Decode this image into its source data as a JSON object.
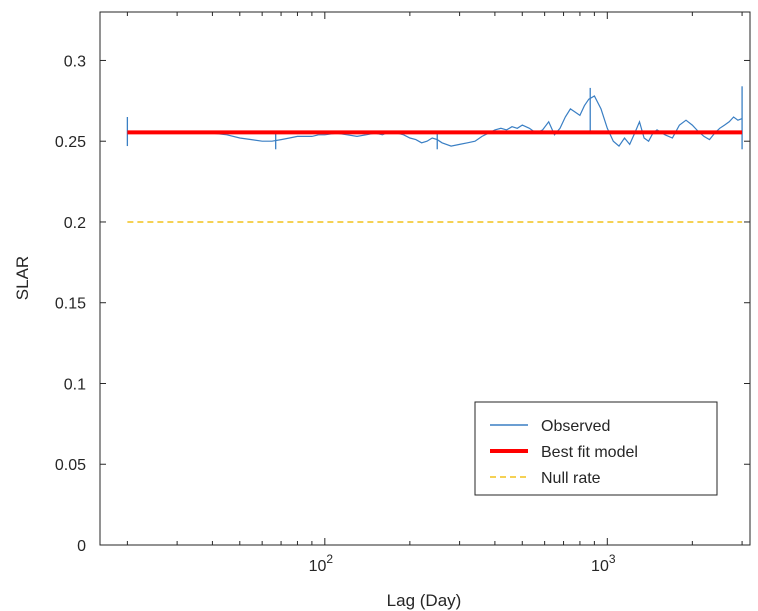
{
  "chart_data": {
    "type": "line",
    "xlabel": "Lag (Day)",
    "ylabel": "SLAR",
    "xscale": "log",
    "xlim": [
      16,
      3200
    ],
    "ylim": [
      0,
      0.33
    ],
    "yticks": [
      0,
      0.05,
      0.1,
      0.15,
      0.2,
      0.25,
      0.3
    ],
    "ytick_labels": [
      "0",
      "0.05",
      "0.1",
      "0.15",
      "0.2",
      "0.25",
      "0.3"
    ],
    "xticks": [
      {
        "value": 100,
        "base": "10",
        "exp": "2"
      },
      {
        "value": 1000,
        "base": "10",
        "exp": "3"
      }
    ],
    "grid": false,
    "legend_position": "bottom-right",
    "series": [
      {
        "name": "Observed",
        "style": "solid",
        "color": "#3a7fc4",
        "x": [
          20,
          25,
          30,
          35,
          40,
          45,
          50,
          55,
          60,
          65,
          70,
          75,
          80,
          85,
          90,
          95,
          100,
          110,
          120,
          130,
          140,
          150,
          160,
          170,
          180,
          190,
          200,
          210,
          220,
          230,
          240,
          250,
          260,
          280,
          300,
          320,
          340,
          360,
          380,
          400,
          420,
          440,
          460,
          480,
          500,
          530,
          560,
          590,
          620,
          650,
          680,
          710,
          740,
          770,
          800,
          830,
          860,
          900,
          950,
          1000,
          1050,
          1100,
          1150,
          1200,
          1250,
          1300,
          1350,
          1400,
          1450,
          1500,
          1600,
          1700,
          1800,
          1900,
          2000,
          2100,
          2200,
          2300,
          2400,
          2500,
          2600,
          2700,
          2800,
          2900,
          3000
        ],
        "y": [
          0.256,
          0.256,
          0.256,
          0.256,
          0.255,
          0.254,
          0.252,
          0.251,
          0.25,
          0.25,
          0.251,
          0.252,
          0.253,
          0.253,
          0.253,
          0.254,
          0.254,
          0.255,
          0.254,
          0.253,
          0.254,
          0.255,
          0.254,
          0.256,
          0.255,
          0.254,
          0.252,
          0.251,
          0.249,
          0.25,
          0.252,
          0.251,
          0.249,
          0.247,
          0.248,
          0.249,
          0.25,
          0.253,
          0.255,
          0.257,
          0.258,
          0.257,
          0.259,
          0.258,
          0.26,
          0.258,
          0.255,
          0.257,
          0.262,
          0.254,
          0.258,
          0.265,
          0.27,
          0.268,
          0.266,
          0.272,
          0.276,
          0.278,
          0.27,
          0.258,
          0.25,
          0.247,
          0.252,
          0.248,
          0.255,
          0.262,
          0.252,
          0.25,
          0.255,
          0.257,
          0.254,
          0.252,
          0.26,
          0.263,
          0.26,
          0.256,
          0.253,
          0.251,
          0.255,
          0.258,
          0.26,
          0.262,
          0.265,
          0.263,
          0.264
        ],
        "error_bars": [
          {
            "x": 20,
            "y_low": 0.247,
            "y_high": 0.265
          },
          {
            "x": 67,
            "y_low": 0.245,
            "y_high": 0.256
          },
          {
            "x": 250,
            "y_low": 0.245,
            "y_high": 0.256
          },
          {
            "x": 870,
            "y_low": 0.255,
            "y_high": 0.283
          },
          {
            "x": 3000,
            "y_low": 0.245,
            "y_high": 0.284
          }
        ]
      },
      {
        "name": "Best fit model",
        "style": "solid",
        "color": "#ff0000",
        "x": [
          20,
          3000
        ],
        "y": [
          0.2555,
          0.2555
        ]
      },
      {
        "name": "Null rate",
        "style": "dashed",
        "color": "#f2c21b",
        "x": [
          20,
          3000
        ],
        "y": [
          0.2,
          0.2
        ]
      }
    ]
  }
}
